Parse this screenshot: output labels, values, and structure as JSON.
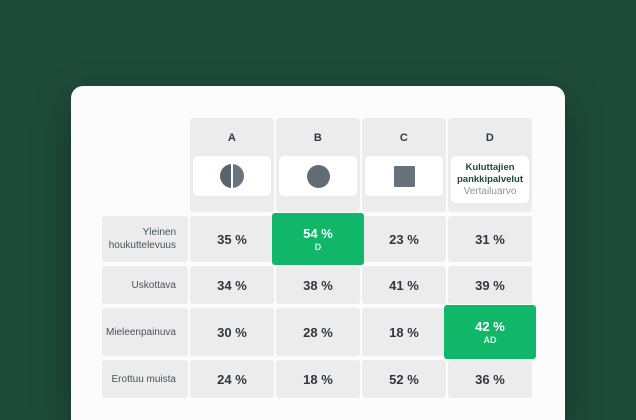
{
  "colors": {
    "page_background": "#1E4B39",
    "card_background": "#FCFCFC",
    "cell_background": "#ECECEC",
    "highlight_green": "#10B768",
    "icon_gray": "#626C75",
    "benchmark_title_green": "#1B4A38"
  },
  "table": {
    "columns": [
      {
        "label": "A",
        "icon": "half-circle-icon"
      },
      {
        "label": "B",
        "icon": "circle-icon"
      },
      {
        "label": "C",
        "icon": "square-icon"
      },
      {
        "label": "D",
        "title": "Kuluttajien pankkipalvelut",
        "subtitle": "Vertailuarvo"
      }
    ],
    "rows": [
      {
        "label": "Yleinen houkuttelevuus",
        "cells": [
          {
            "value": "35 %"
          },
          {
            "value": "54 %",
            "tag": "D",
            "highlight": true
          },
          {
            "value": "23 %"
          },
          {
            "value": "31 %"
          }
        ]
      },
      {
        "label": "Uskottava",
        "cells": [
          {
            "value": "34 %"
          },
          {
            "value": "38 %"
          },
          {
            "value": "41 %"
          },
          {
            "value": "39 %"
          }
        ]
      },
      {
        "label": "Mieleenpainuva",
        "cells": [
          {
            "value": "30 %"
          },
          {
            "value": "28 %"
          },
          {
            "value": "18 %"
          },
          {
            "value": "42 %",
            "tag": "AD",
            "highlight": true
          }
        ]
      },
      {
        "label": "Erottuu muista",
        "cells": [
          {
            "value": "24 %"
          },
          {
            "value": "18 %"
          },
          {
            "value": "52 %"
          },
          {
            "value": "36 %"
          }
        ]
      }
    ]
  },
  "chart_data": {
    "type": "table",
    "title": "",
    "row_labels": [
      "Yleinen houkuttelevuus",
      "Uskottava",
      "Mieleenpainuva",
      "Erottuu muista"
    ],
    "columns": [
      "A",
      "B",
      "C",
      "D Kuluttajien pankkipalvelut Vertailuarvo"
    ],
    "values_percent": [
      [
        35,
        54,
        23,
        31
      ],
      [
        34,
        38,
        41,
        39
      ],
      [
        30,
        28,
        18,
        42
      ],
      [
        24,
        18,
        52,
        36
      ]
    ],
    "highlighted_cells": [
      {
        "row": 0,
        "col": 1,
        "tag": "D"
      },
      {
        "row": 2,
        "col": 3,
        "tag": "AD"
      }
    ],
    "legend_position": "top",
    "grid": false
  }
}
